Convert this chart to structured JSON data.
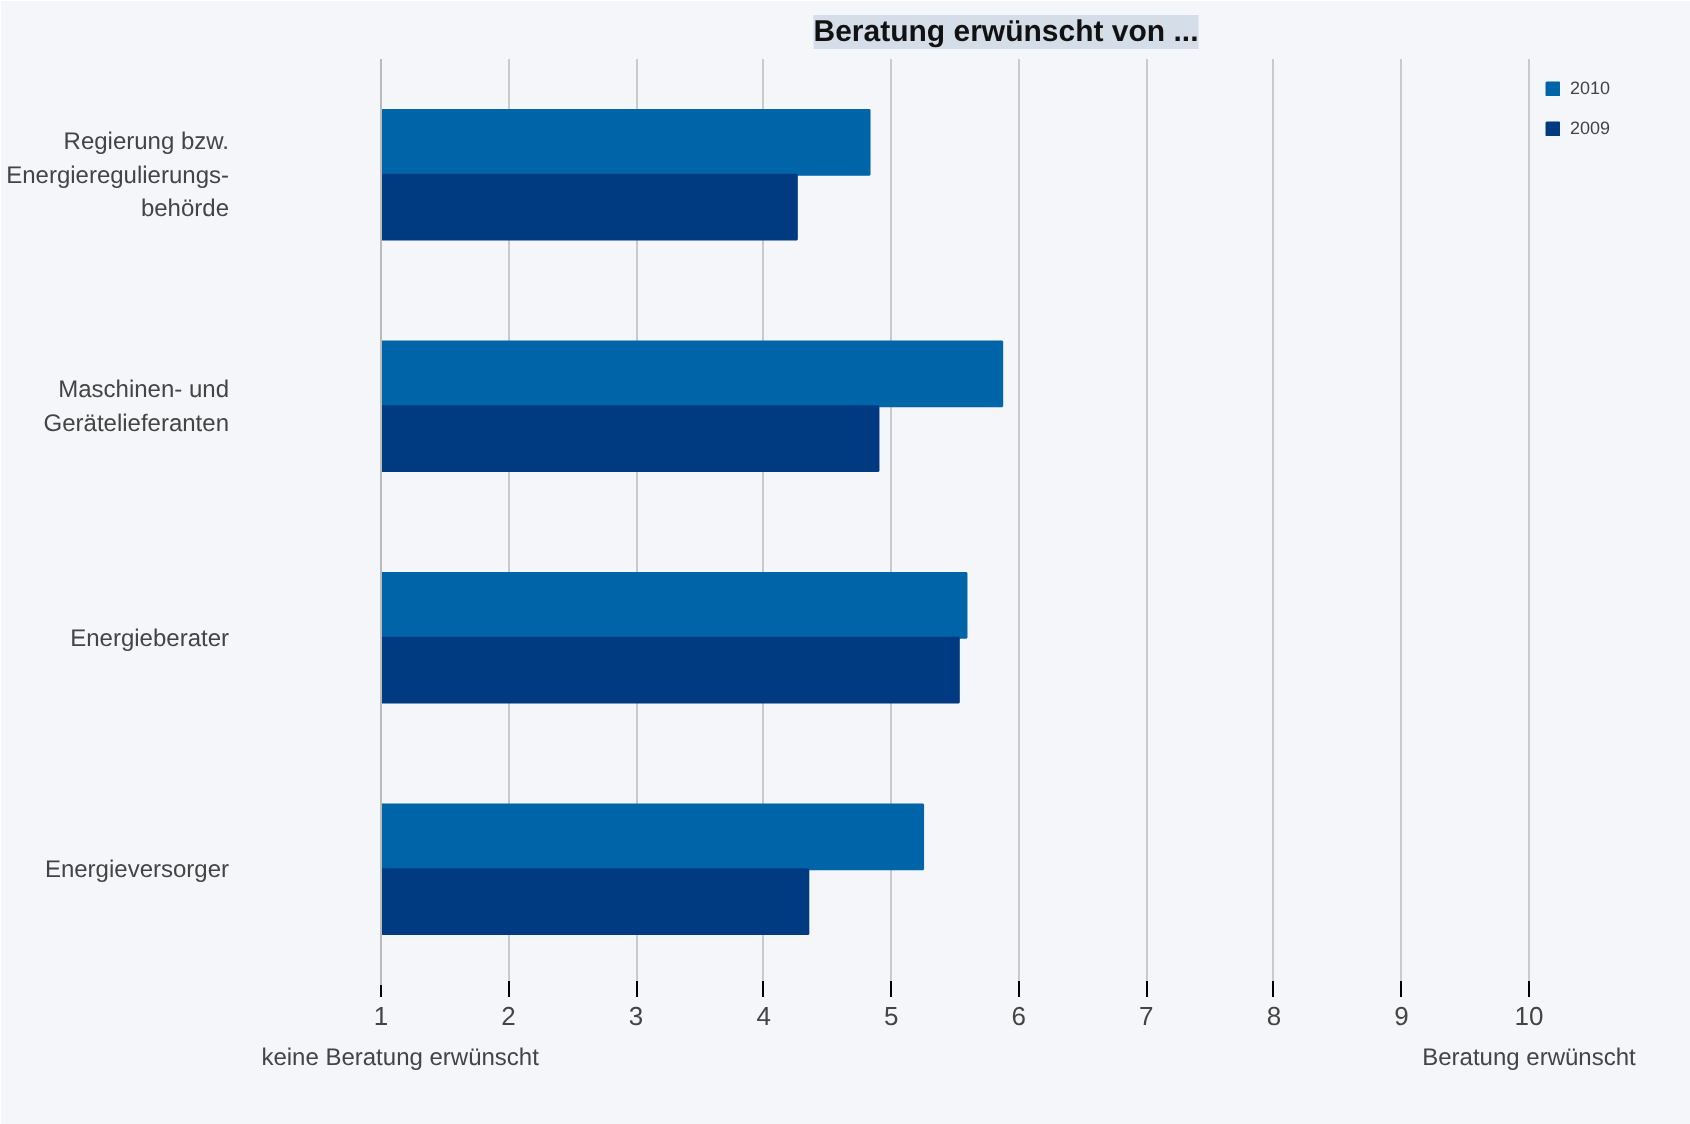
{
  "chart_data": {
    "type": "bar",
    "orientation": "horizontal",
    "title": "Beratung erwünscht von ...",
    "categories": [
      "Regierung bzw. Energieregulierungs-behörde",
      "Maschinen- und Gerätelieferanten",
      "Energieberater",
      "Energieversorger"
    ],
    "series": [
      {
        "name": "2010",
        "color": "#0065a8",
        "values": [
          4.83,
          5.87,
          5.59,
          5.25
        ]
      },
      {
        "name": "2009",
        "color": "#003a80",
        "values": [
          4.26,
          4.9,
          5.53,
          4.35
        ]
      }
    ],
    "xlim": [
      1,
      10.8
    ],
    "xticks": [
      1,
      2,
      3,
      4,
      5,
      6,
      7,
      8,
      9,
      10
    ],
    "grid": "x",
    "legend": "top right",
    "annotations": [
      "keine Beratung erwünscht",
      "Beratung erwünscht"
    ]
  }
}
